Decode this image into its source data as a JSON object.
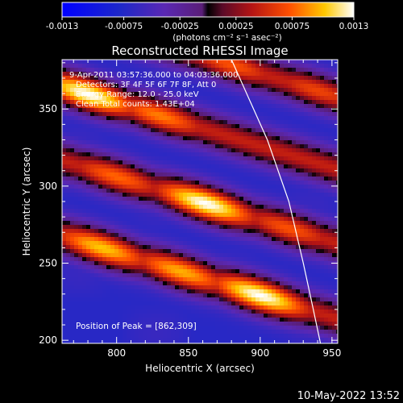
{
  "chart_data": {
    "type": "heatmap",
    "title": "Reconstructed RHESSI Image",
    "colorbar": {
      "ticks": [
        "-0.0013",
        "-0.00075",
        "-0.00025",
        "0.00025",
        "0.00075",
        "0.0013"
      ],
      "min": -0.0013,
      "max": 0.0013,
      "unit": "(photons cm⁻² s⁻¹ asec⁻²)"
    },
    "annotations": [
      "9-Apr-2011 03:57:36.000 to 04:03:36.000",
      "Detectors: 3F 4F 5F 6F 7F 8F, Att 0",
      "Energy Range: 12.0 - 25.0 keV",
      "Clean    Total counts: 1.43E+04"
    ],
    "peak": {
      "label": "Position of Peak = [862,309]",
      "x": 862,
      "y": 309
    },
    "xlabel": "Heliocentric X (arcsec)",
    "ylabel": "Heliocentric Y (arcsec)",
    "xlim": [
      762,
      954
    ],
    "ylim": [
      198,
      382
    ],
    "xticks": [
      800,
      850,
      900,
      950
    ],
    "yticks": [
      200,
      250,
      300,
      350
    ],
    "limb": [
      [
        880,
        382
      ],
      [
        905,
        330
      ],
      [
        920,
        290
      ],
      [
        930,
        250
      ],
      [
        937,
        220
      ],
      [
        942,
        198
      ]
    ],
    "bands": [
      {
        "offset": 340,
        "peaks": [
          {
            "x": 780,
            "v": 1.0
          },
          {
            "x": 830,
            "v": 0.65
          }
        ]
      },
      {
        "offset": 292,
        "peaks": [
          {
            "x": 862,
            "v": 1.0
          },
          {
            "x": 800,
            "v": 0.6
          },
          {
            "x": 920,
            "v": 0.55
          }
        ]
      },
      {
        "offset": 243,
        "peaks": [
          {
            "x": 790,
            "v": 0.8
          },
          {
            "x": 900,
            "v": 1.0
          },
          {
            "x": 845,
            "v": 0.75
          }
        ]
      },
      {
        "offset": 387,
        "peaks": [
          {
            "x": 880,
            "v": 0.55
          },
          {
            "x": 940,
            "v": 0.5
          }
        ]
      }
    ],
    "band_slope": -0.28
  },
  "footer": {
    "timestamp": "10-May-2022 13:52"
  }
}
